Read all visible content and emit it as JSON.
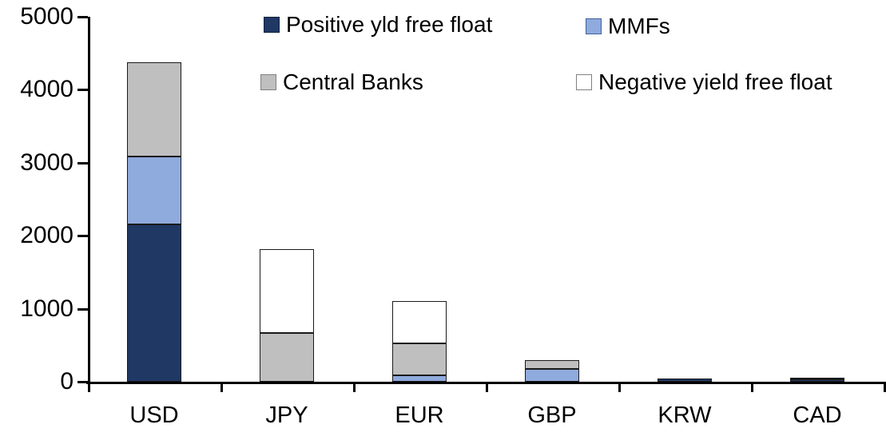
{
  "chart_data": {
    "type": "bar",
    "stacked": true,
    "title": "",
    "xlabel": "",
    "ylabel": "",
    "categories": [
      "USD",
      "JPY",
      "EUR",
      "GBP",
      "KRW",
      "CAD"
    ],
    "series": [
      {
        "name": "Positive yld free float",
        "color": "#1f3864",
        "values": [
          2150,
          0,
          0,
          0,
          40,
          30
        ]
      },
      {
        "name": "MMFs",
        "color": "#8faadc",
        "values": [
          930,
          0,
          90,
          180,
          0,
          0
        ]
      },
      {
        "name": "Central Banks",
        "color": "#bfbfbf",
        "values": [
          1300,
          670,
          440,
          120,
          0,
          30
        ]
      },
      {
        "name": "Negative yield free float",
        "color": "#ffffff",
        "values": [
          0,
          1150,
          570,
          0,
          0,
          0
        ]
      }
    ],
    "ylim": [
      0,
      5000
    ],
    "yticks": [
      0,
      1000,
      2000,
      3000,
      4000,
      5000
    ],
    "grid": false,
    "legend_position": "top"
  }
}
